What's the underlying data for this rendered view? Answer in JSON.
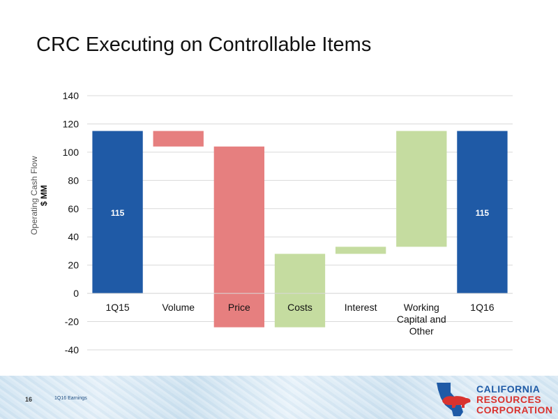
{
  "slide": {
    "title": "CRC Executing on Controllable Items",
    "page_number": "16",
    "footer_text": "1Q16 Earnings"
  },
  "logo": {
    "line1": "CALIFORNIA",
    "line2": "RESOURCES",
    "line3": "CORPORATION",
    "colors": {
      "blue": "#1f5aa6",
      "red": "#d9332f"
    },
    "icon": "california-bear-logo-icon"
  },
  "chart_data": {
    "type": "bar",
    "subtype": "waterfall",
    "title": "",
    "ylabel": [
      "Operating Cash Flow",
      "$ MM"
    ],
    "xlabel": "",
    "ylim": [
      -40,
      140
    ],
    "yticks": [
      -40,
      -20,
      0,
      20,
      40,
      60,
      80,
      100,
      120,
      140
    ],
    "grid": true,
    "categories": [
      [
        "1Q15"
      ],
      [
        "Volume"
      ],
      [
        "Price"
      ],
      [
        "Costs"
      ],
      [
        "Interest"
      ],
      [
        "Working",
        "Capital and",
        "Other"
      ],
      [
        "1Q16"
      ]
    ],
    "bars": [
      {
        "kind": "total",
        "start": 0,
        "end": 115,
        "label": "115",
        "color": "#1f5aa6"
      },
      {
        "kind": "decrease",
        "start": 115,
        "end": 104,
        "label": "",
        "color": "#e67f7f"
      },
      {
        "kind": "decrease",
        "start": 104,
        "end": -24,
        "label": "",
        "color": "#e67f7f"
      },
      {
        "kind": "increase",
        "start": -24,
        "end": 28,
        "label": "",
        "color": "#c5dca0"
      },
      {
        "kind": "increase",
        "start": 28,
        "end": 33,
        "label": "",
        "color": "#c5dca0"
      },
      {
        "kind": "increase",
        "start": 33,
        "end": 115,
        "label": "",
        "color": "#c5dca0"
      },
      {
        "kind": "total",
        "start": 0,
        "end": 115,
        "label": "115",
        "color": "#1f5aa6"
      }
    ]
  }
}
